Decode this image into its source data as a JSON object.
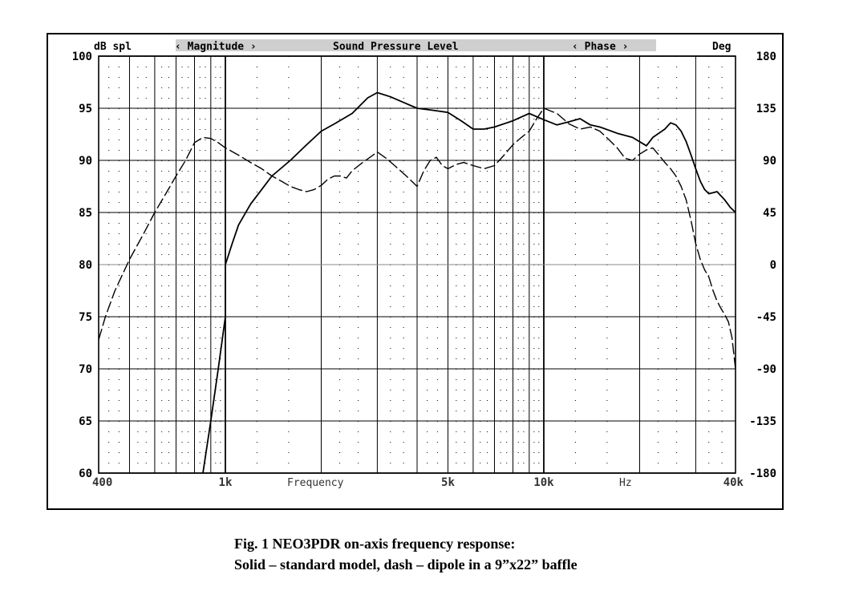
{
  "caption": {
    "line1": "Fig. 1 NEO3PDR on-axis frequency response:",
    "line2": "Solid – standard model, dash – dipole in a 9”x22” baffle"
  },
  "chart_data": {
    "type": "line",
    "header": {
      "left_unit": "dB spl",
      "magnitude": "‹ Magnitude ›",
      "title": "Sound Pressure Level",
      "phase": "‹ Phase ›",
      "right_unit": "Deg"
    },
    "xlabel": "Frequency",
    "xunit": "Hz",
    "xscale": "log",
    "xlim": [
      400,
      40000
    ],
    "x_tick_labels": [
      {
        "value": 400,
        "label": "400"
      },
      {
        "value": 1000,
        "label": "1k"
      },
      {
        "value": 5000,
        "label": "5k"
      },
      {
        "value": 10000,
        "label": "10k"
      },
      {
        "value": 40000,
        "label": "40k"
      }
    ],
    "ylim_left": [
      60,
      100
    ],
    "y_ticks_left": [
      60,
      65,
      70,
      75,
      80,
      85,
      90,
      95,
      100
    ],
    "ylim_right": [
      -180,
      180
    ],
    "y_ticks_right": [
      -180,
      -135,
      -90,
      -45,
      0,
      45,
      90,
      135,
      180
    ],
    "grid": true,
    "series": [
      {
        "style": "solid",
        "points": [
          [
            850,
            60
          ],
          [
            900,
            65
          ],
          [
            950,
            70
          ],
          [
            1000,
            75
          ],
          [
            1000,
            80
          ],
          [
            1050,
            82
          ],
          [
            1100,
            83.8
          ],
          [
            1200,
            85.8
          ],
          [
            1300,
            87.2
          ],
          [
            1400,
            88.5
          ],
          [
            1600,
            90
          ],
          [
            1800,
            91.5
          ],
          [
            2000,
            92.8
          ],
          [
            2200,
            93.5
          ],
          [
            2500,
            94.5
          ],
          [
            2800,
            96
          ],
          [
            3000,
            96.5
          ],
          [
            3300,
            96.1
          ],
          [
            3600,
            95.6
          ],
          [
            4000,
            95
          ],
          [
            4500,
            94.8
          ],
          [
            5000,
            94.6
          ],
          [
            5500,
            93.8
          ],
          [
            6000,
            93
          ],
          [
            6500,
            93
          ],
          [
            7000,
            93.2
          ],
          [
            8000,
            93.8
          ],
          [
            9000,
            94.5
          ],
          [
            10000,
            93.9
          ],
          [
            11000,
            93.4
          ],
          [
            12000,
            93.7
          ],
          [
            13000,
            94
          ],
          [
            14000,
            93.4
          ],
          [
            15000,
            93.2
          ],
          [
            17000,
            92.6
          ],
          [
            19000,
            92.2
          ],
          [
            21000,
            91.4
          ],
          [
            22000,
            92.2
          ],
          [
            24000,
            93
          ],
          [
            25000,
            93.6
          ],
          [
            26000,
            93.4
          ],
          [
            27000,
            92.8
          ],
          [
            28000,
            91.8
          ],
          [
            29000,
            90.5
          ],
          [
            30000,
            89.2
          ],
          [
            31000,
            88
          ],
          [
            32000,
            87.2
          ],
          [
            33000,
            86.8
          ],
          [
            35000,
            87
          ],
          [
            37000,
            86.2
          ],
          [
            38500,
            85.5
          ],
          [
            40000,
            85
          ]
        ]
      },
      {
        "style": "dash",
        "points": [
          [
            400,
            72.8
          ],
          [
            420,
            75
          ],
          [
            450,
            77.5
          ],
          [
            500,
            80.5
          ],
          [
            550,
            82.8
          ],
          [
            600,
            85
          ],
          [
            650,
            86.8
          ],
          [
            700,
            88.5
          ],
          [
            750,
            90
          ],
          [
            800,
            91.7
          ],
          [
            850,
            92.2
          ],
          [
            900,
            92.1
          ],
          [
            950,
            91.7
          ],
          [
            1000,
            91.2
          ],
          [
            1100,
            90.5
          ],
          [
            1200,
            89.8
          ],
          [
            1300,
            89.2
          ],
          [
            1400,
            88.5
          ],
          [
            1500,
            88
          ],
          [
            1600,
            87.5
          ],
          [
            1700,
            87.2
          ],
          [
            1800,
            87
          ],
          [
            1900,
            87.2
          ],
          [
            2000,
            87.6
          ],
          [
            2100,
            88.2
          ],
          [
            2200,
            88.5
          ],
          [
            2300,
            88.5
          ],
          [
            2400,
            88.3
          ],
          [
            2500,
            89
          ],
          [
            2700,
            89.8
          ],
          [
            3000,
            90.8
          ],
          [
            3200,
            90.2
          ],
          [
            3400,
            89.5
          ],
          [
            3700,
            88.5
          ],
          [
            4000,
            87.5
          ],
          [
            4200,
            89
          ],
          [
            4400,
            90
          ],
          [
            4600,
            90.3
          ],
          [
            4800,
            89.5
          ],
          [
            5000,
            89.2
          ],
          [
            5300,
            89.6
          ],
          [
            5600,
            89.8
          ],
          [
            6000,
            89.5
          ],
          [
            6500,
            89.2
          ],
          [
            7000,
            89.5
          ],
          [
            7500,
            90.5
          ],
          [
            8000,
            91.5
          ],
          [
            8500,
            92.2
          ],
          [
            9000,
            92.8
          ],
          [
            9500,
            94
          ],
          [
            10000,
            95
          ],
          [
            11000,
            94.5
          ],
          [
            12000,
            93.5
          ],
          [
            13000,
            93
          ],
          [
            14000,
            93.2
          ],
          [
            15000,
            92.8
          ],
          [
            16000,
            92
          ],
          [
            17000,
            91.2
          ],
          [
            18000,
            90.2
          ],
          [
            19000,
            90
          ],
          [
            20000,
            90.6
          ],
          [
            21000,
            91
          ],
          [
            22000,
            91.2
          ],
          [
            23000,
            90.5
          ],
          [
            24000,
            89.8
          ],
          [
            25000,
            89.2
          ],
          [
            26000,
            88.5
          ],
          [
            27000,
            87.5
          ],
          [
            28000,
            86.2
          ],
          [
            29000,
            84.2
          ],
          [
            30000,
            82
          ],
          [
            31000,
            80.5
          ],
          [
            32000,
            79.5
          ],
          [
            33000,
            78.8
          ],
          [
            34000,
            77.5
          ],
          [
            35000,
            76.5
          ],
          [
            36000,
            75.8
          ],
          [
            37000,
            75.2
          ],
          [
            38000,
            74.5
          ],
          [
            39000,
            73
          ],
          [
            40000,
            70
          ]
        ]
      }
    ]
  }
}
